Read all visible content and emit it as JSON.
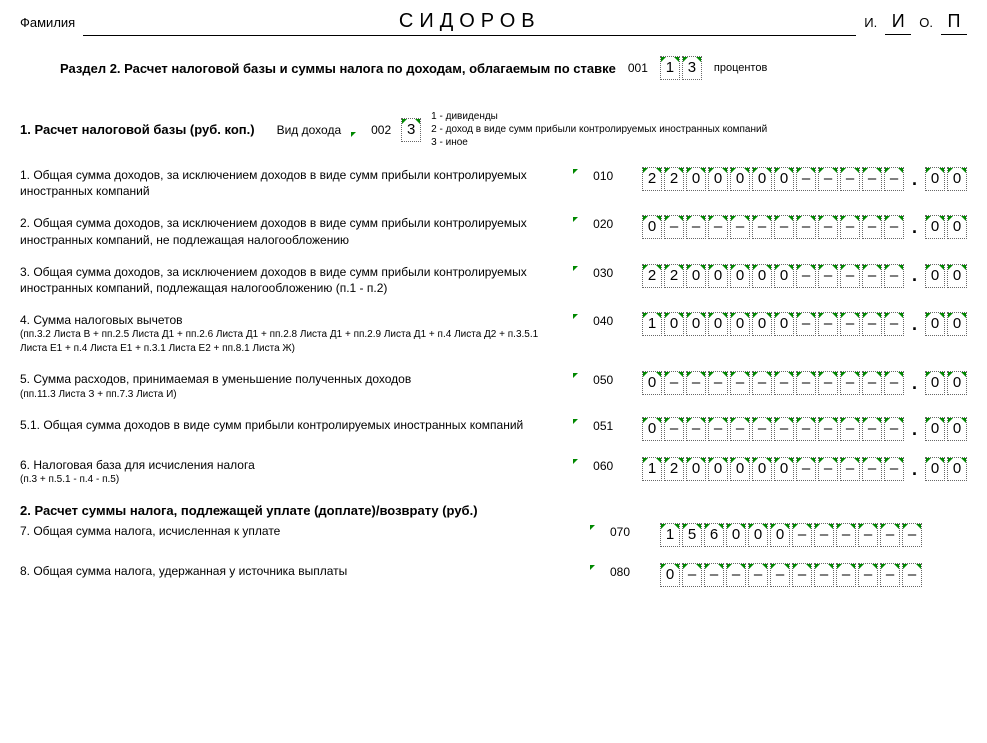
{
  "header": {
    "surname_label": "Фамилия",
    "surname": "СИДОРОВ",
    "initial_i_label": "И.",
    "initial_i": "И",
    "initial_o_label": "О.",
    "initial_o": "П"
  },
  "section2": {
    "title": "Раздел 2. Расчет налоговой базы и суммы налога по доходам, облагаемым по ставке",
    "rate_code_label": "001",
    "rate_digits": [
      "1",
      "3"
    ],
    "rate_suffix": "процентов"
  },
  "incometype": {
    "heading": "1. Расчет налоговой базы (руб. коп.)",
    "label": "Вид дохода",
    "code_label": "002",
    "value": "3",
    "legend1": "1 - дивиденды",
    "legend2": "2 - доход в виде сумм прибыли контролируемых иностранных компаний",
    "legend3": "3 - иное"
  },
  "rows": [
    {
      "text": "1. Общая сумма доходов, за исключением доходов в виде сумм прибыли контролируемых иностранных компаний",
      "code": "010",
      "int": [
        "2",
        "2",
        "0",
        "0",
        "0",
        "0",
        "0",
        "–",
        "–",
        "–",
        "–",
        "–"
      ],
      "dec": [
        "0",
        "0"
      ],
      "has_dec": true
    },
    {
      "text": "2. Общая сумма доходов, за исключением доходов в виде сумм прибыли контролируемых иностранных компаний, не подлежащая налогообложению",
      "code": "020",
      "int": [
        "0",
        "–",
        "–",
        "–",
        "–",
        "–",
        "–",
        "–",
        "–",
        "–",
        "–",
        "–"
      ],
      "dec": [
        "0",
        "0"
      ],
      "has_dec": true
    },
    {
      "text": "3. Общая сумма доходов, за исключением доходов в виде сумм прибыли контролируемых иностранных компаний, подлежащая налогообложению (п.1 - п.2)",
      "code": "030",
      "int": [
        "2",
        "2",
        "0",
        "0",
        "0",
        "0",
        "0",
        "–",
        "–",
        "–",
        "–",
        "–"
      ],
      "dec": [
        "0",
        "0"
      ],
      "has_dec": true
    },
    {
      "text": "4. Сумма налоговых вычетов",
      "subtext": "(пп.3.2 Листа В + пп.2.5 Листа Д1 + пп.2.6 Листа Д1 + пп.2.8 Листа Д1 + пп.2.9 Листа Д1 + п.4 Листа Д2 + п.3.5.1 Листа Е1 + п.4 Листа Е1 + п.3.1 Листа Е2 + пп.8.1 Листа Ж)",
      "code": "040",
      "int": [
        "1",
        "0",
        "0",
        "0",
        "0",
        "0",
        "0",
        "–",
        "–",
        "–",
        "–",
        "–"
      ],
      "dec": [
        "0",
        "0"
      ],
      "has_dec": true
    },
    {
      "text": "5. Сумма расходов, принимаемая в уменьшение полученных доходов",
      "subtext": "(пп.11.3 Листа З + пп.7.3 Листа И)",
      "code": "050",
      "int": [
        "0",
        "–",
        "–",
        "–",
        "–",
        "–",
        "–",
        "–",
        "–",
        "–",
        "–",
        "–"
      ],
      "dec": [
        "0",
        "0"
      ],
      "has_dec": true
    },
    {
      "text": "5.1. Общая сумма доходов в виде сумм прибыли контролируемых иностранных компаний",
      "code": "051",
      "int": [
        "0",
        "–",
        "–",
        "–",
        "–",
        "–",
        "–",
        "–",
        "–",
        "–",
        "–",
        "–"
      ],
      "dec": [
        "0",
        "0"
      ],
      "has_dec": true
    },
    {
      "text": "6. Налоговая база для исчисления налога",
      "subtext": "(п.3 + п.5.1 - п.4 - п.5)",
      "code": "060",
      "int": [
        "1",
        "2",
        "0",
        "0",
        "0",
        "0",
        "0",
        "–",
        "–",
        "–",
        "–",
        "–"
      ],
      "dec": [
        "0",
        "0"
      ],
      "has_dec": true
    }
  ],
  "subsection2": {
    "heading": "2. Расчет суммы налога, подлежащей уплате (доплате)/возврату (руб.)"
  },
  "rows2": [
    {
      "text": "7. Общая сумма налога, исчисленная к уплате",
      "code": "070",
      "int": [
        "1",
        "5",
        "6",
        "0",
        "0",
        "0",
        "–",
        "–",
        "–",
        "–",
        "–",
        "–"
      ],
      "has_dec": false
    },
    {
      "text": "8. Общая сумма налога, удержанная у источника выплаты",
      "code": "080",
      "int": [
        "0",
        "–",
        "–",
        "–",
        "–",
        "–",
        "–",
        "–",
        "–",
        "–",
        "–",
        "–"
      ],
      "has_dec": false
    }
  ],
  "style": {
    "cell_border_color": "#666666",
    "tick_color": "#008800",
    "text_color": "#000000",
    "background_color": "#ffffff",
    "base_font_size": 12,
    "surname_font_size": 20
  }
}
